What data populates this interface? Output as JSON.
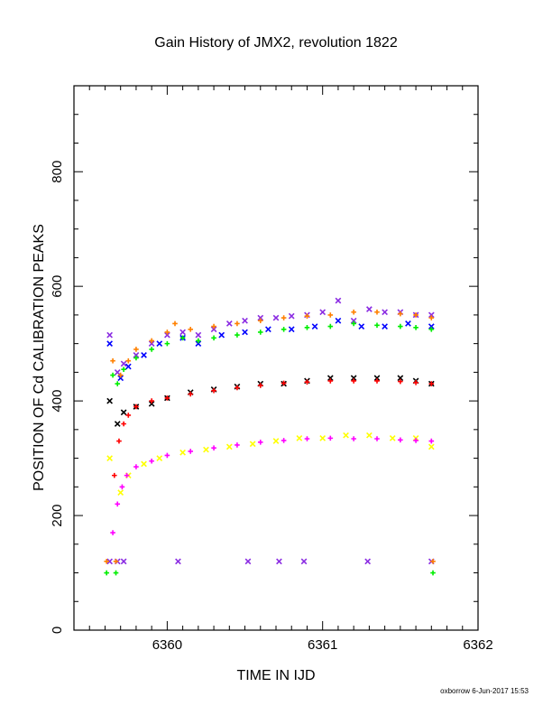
{
  "chart_data": {
    "type": "scatter",
    "title": "Gain History of JMX2, revolution 1822",
    "xlabel": "TIME IN IJD",
    "ylabel": "POSITION OF Cd CALIBRATION PEAKS",
    "xlim": [
      6359.4,
      6362.0
    ],
    "ylim": [
      0,
      950
    ],
    "x_ticks": [
      6360,
      6361,
      6362
    ],
    "y_ticks": [
      0,
      200,
      400,
      600,
      800
    ],
    "x_tick_labels": [
      "6360",
      "6361",
      "6362"
    ],
    "y_tick_labels": [
      "0",
      "200",
      "400",
      "600",
      "800"
    ],
    "grid": false,
    "legend": "none",
    "series": [
      {
        "color": "#8a2be2",
        "marker": "x",
        "x": [
          6359.63,
          6359.68,
          6359.72,
          6359.8,
          6359.9,
          6360.0,
          6360.1,
          6360.2,
          6360.3,
          6360.4,
          6360.5,
          6360.6,
          6360.7,
          6360.8,
          6360.9,
          6361.0,
          6361.1,
          6361.2,
          6361.3,
          6361.4,
          6361.5,
          6361.6,
          6361.7
        ],
        "y": [
          515,
          450,
          465,
          480,
          500,
          515,
          520,
          515,
          525,
          535,
          540,
          545,
          545,
          548,
          550,
          555,
          575,
          540,
          560,
          555,
          555,
          550,
          550
        ]
      },
      {
        "color": "#0000ff",
        "marker": "x",
        "x": [
          6359.63,
          6359.7,
          6359.75,
          6359.85,
          6359.95,
          6360.1,
          6360.2,
          6360.35,
          6360.5,
          6360.65,
          6360.8,
          6360.95,
          6361.1,
          6361.25,
          6361.4,
          6361.55,
          6361.7
        ],
        "y": [
          500,
          440,
          460,
          480,
          500,
          510,
          500,
          515,
          520,
          525,
          525,
          530,
          540,
          530,
          530,
          535,
          530
        ]
      },
      {
        "color": "#ff8000",
        "marker": "+",
        "x": [
          6359.65,
          6359.7,
          6359.75,
          6359.8,
          6359.9,
          6360.0,
          6360.05,
          6360.15,
          6360.3,
          6360.45,
          6360.6,
          6360.75,
          6360.9,
          6361.05,
          6361.2,
          6361.35,
          6361.5,
          6361.6,
          6361.7
        ],
        "y": [
          470,
          445,
          470,
          490,
          505,
          520,
          535,
          525,
          530,
          535,
          540,
          545,
          548,
          550,
          555,
          555,
          552,
          550,
          545
        ]
      },
      {
        "color": "#00ee00",
        "marker": "+",
        "x": [
          6359.65,
          6359.68,
          6359.72,
          6359.8,
          6359.9,
          6360.0,
          6360.1,
          6360.2,
          6360.3,
          6360.45,
          6360.6,
          6360.75,
          6360.9,
          6361.05,
          6361.2,
          6361.35,
          6361.5,
          6361.6,
          6361.7
        ],
        "y": [
          445,
          430,
          455,
          475,
          490,
          500,
          510,
          505,
          510,
          515,
          520,
          525,
          528,
          530,
          535,
          532,
          530,
          528,
          525
        ]
      },
      {
        "color": "#000000",
        "marker": "x",
        "x": [
          6359.63,
          6359.68,
          6359.72,
          6359.8,
          6359.9,
          6360.0,
          6360.15,
          6360.3,
          6360.45,
          6360.6,
          6360.75,
          6360.9,
          6361.05,
          6361.2,
          6361.35,
          6361.5,
          6361.6,
          6361.7
        ],
        "y": [
          400,
          360,
          380,
          390,
          395,
          405,
          415,
          420,
          425,
          430,
          430,
          435,
          440,
          440,
          440,
          440,
          435,
          430
        ]
      },
      {
        "color": "#ff0000",
        "marker": "+",
        "x": [
          6359.66,
          6359.69,
          6359.72,
          6359.75,
          6359.8,
          6359.9,
          6360.0,
          6360.15,
          6360.3,
          6360.45,
          6360.6,
          6360.75,
          6360.9,
          6361.05,
          6361.2,
          6361.35,
          6361.5,
          6361.6,
          6361.7
        ],
        "y": [
          270,
          330,
          360,
          375,
          390,
          400,
          405,
          412,
          418,
          423,
          427,
          431,
          433,
          435,
          435,
          435,
          434,
          432,
          430
        ]
      },
      {
        "color": "#ffff00",
        "marker": "x",
        "x": [
          6359.63,
          6359.7,
          6359.75,
          6359.85,
          6359.95,
          6360.1,
          6360.25,
          6360.4,
          6360.55,
          6360.7,
          6360.85,
          6361.0,
          6361.15,
          6361.3,
          6361.45,
          6361.6,
          6361.7
        ],
        "y": [
          300,
          240,
          270,
          290,
          300,
          310,
          315,
          320,
          325,
          330,
          335,
          335,
          340,
          340,
          335,
          335,
          320
        ]
      },
      {
        "color": "#ff00ff",
        "marker": "+",
        "x": [
          6359.65,
          6359.68,
          6359.71,
          6359.74,
          6359.8,
          6359.9,
          6360.0,
          6360.15,
          6360.3,
          6360.45,
          6360.6,
          6360.75,
          6360.9,
          6361.05,
          6361.2,
          6361.35,
          6361.5,
          6361.6,
          6361.7
        ],
        "y": [
          170,
          220,
          250,
          270,
          285,
          295,
          305,
          312,
          318,
          323,
          328,
          331,
          334,
          335,
          334,
          334,
          332,
          331,
          330
        ]
      },
      {
        "color": "#8a2be2",
        "marker": "x",
        "x": [
          6359.63,
          6359.68,
          6359.72,
          6360.07,
          6360.52,
          6360.72,
          6360.88,
          6361.29,
          6361.7
        ],
        "y": [
          120,
          120,
          120,
          120,
          120,
          120,
          120,
          120,
          120
        ]
      },
      {
        "color": "#ff8000",
        "marker": "+",
        "x": [
          6359.61,
          6359.67,
          6361.71
        ],
        "y": [
          120,
          120,
          120
        ]
      },
      {
        "color": "#00ee00",
        "marker": "+",
        "x": [
          6359.61,
          6359.67,
          6361.71
        ],
        "y": [
          100,
          100,
          100
        ]
      }
    ]
  },
  "footer": {
    "credit": "oxborrow  6-Jun-2017 15:53"
  }
}
